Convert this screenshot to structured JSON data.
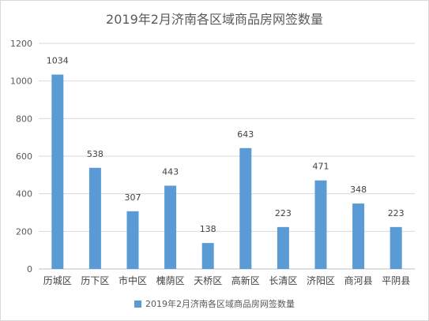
{
  "chart_data": {
    "type": "bar",
    "title": "2019年2月济南各区域商品房网签数量",
    "xlabel": "",
    "ylabel": "",
    "categories": [
      "历城区",
      "历下区",
      "市中区",
      "槐荫区",
      "天桥区",
      "高新区",
      "长清区",
      "济阳区",
      "商河县",
      "平阴县"
    ],
    "series": [
      {
        "name": "2019年2月济南各区域商品房网签数量",
        "values": [
          1034,
          538,
          307,
          443,
          138,
          643,
          223,
          471,
          348,
          223
        ],
        "color": "#5b9bd5"
      }
    ],
    "ylim": [
      0,
      1200
    ],
    "yticks": [
      0,
      200,
      400,
      600,
      800,
      1000,
      1200
    ],
    "grid": true,
    "legend": "bottom",
    "data_labels": true
  }
}
